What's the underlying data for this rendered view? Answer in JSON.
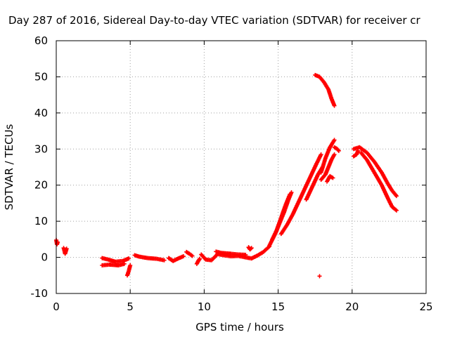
{
  "chart_data": {
    "type": "scatter",
    "title": "Day 287 of 2016, Sidereal Day-to-day VTEC variation (SDTVAR) for receiver cr",
    "xlabel": "GPS time / hours",
    "ylabel": "SDTVAR / TECUs",
    "xlim": [
      0,
      25
    ],
    "ylim": [
      -10,
      60
    ],
    "x_ticks": [
      "0",
      "5",
      "10",
      "15",
      "20",
      "25"
    ],
    "y_ticks": [
      "-10",
      "0",
      "10",
      "20",
      "30",
      "40",
      "50",
      "60"
    ],
    "x_tick_values": [
      0,
      5,
      10,
      15,
      20,
      25
    ],
    "y_tick_values": [
      -10,
      0,
      10,
      20,
      30,
      40,
      50,
      60
    ],
    "grid": true,
    "marker": "plus",
    "series": [
      {
        "name": "SDTVAR",
        "color": "#ff0000",
        "segments": [
          [
            [
              0.0,
              4.8
            ],
            [
              0.05,
              3.6
            ],
            [
              0.1,
              4.2
            ]
          ],
          [
            [
              0.5,
              2.6
            ],
            [
              0.6,
              1.0
            ],
            [
              0.7,
              2.4
            ]
          ],
          [
            [
              3.1,
              -0.2
            ],
            [
              3.5,
              -0.6
            ],
            [
              4.0,
              -1.2
            ],
            [
              4.5,
              -1.0
            ],
            [
              4.9,
              -0.3
            ]
          ],
          [
            [
              3.1,
              -2.2
            ],
            [
              3.6,
              -2.0
            ],
            [
              4.2,
              -2.2
            ],
            [
              4.6,
              -1.8
            ]
          ],
          [
            [
              4.8,
              -5.0
            ],
            [
              4.9,
              -3.8
            ],
            [
              5.0,
              -2.2
            ]
          ],
          [
            [
              5.3,
              0.6
            ],
            [
              5.6,
              0.2
            ],
            [
              6.2,
              -0.2
            ],
            [
              6.8,
              -0.4
            ],
            [
              7.3,
              -0.8
            ]
          ],
          [
            [
              7.6,
              -0.2
            ],
            [
              7.9,
              -1.0
            ],
            [
              8.3,
              -0.2
            ],
            [
              8.6,
              0.3
            ]
          ],
          [
            [
              8.8,
              1.5
            ],
            [
              9.0,
              1.0
            ],
            [
              9.2,
              0.4
            ]
          ],
          [
            [
              9.5,
              -1.8
            ],
            [
              9.6,
              -1.0
            ],
            [
              9.7,
              -0.4
            ]
          ],
          [
            [
              9.8,
              0.8
            ],
            [
              10.1,
              -0.6
            ],
            [
              10.5,
              -0.8
            ],
            [
              10.9,
              0.9
            ],
            [
              11.3,
              0.6
            ],
            [
              11.8,
              0.3
            ],
            [
              12.3,
              0.4
            ],
            [
              12.8,
              0.0
            ],
            [
              13.2,
              -0.3
            ],
            [
              13.6,
              0.5
            ],
            [
              14.0,
              1.5
            ],
            [
              14.4,
              3.0
            ]
          ],
          [
            [
              10.8,
              1.6
            ],
            [
              11.2,
              1.2
            ],
            [
              11.8,
              1.0
            ],
            [
              12.3,
              0.8
            ],
            [
              12.8,
              0.7
            ]
          ],
          [
            [
              13.0,
              2.8
            ],
            [
              13.1,
              2.2
            ],
            [
              13.2,
              2.6
            ]
          ],
          [
            [
              14.4,
              3.2
            ],
            [
              14.8,
              6.5
            ],
            [
              15.1,
              9.5
            ],
            [
              15.4,
              12.5
            ],
            [
              15.7,
              16.0
            ],
            [
              15.9,
              18.0
            ]
          ],
          [
            [
              14.6,
              5.0
            ],
            [
              14.9,
              7.5
            ],
            [
              15.2,
              11.0
            ],
            [
              15.5,
              14.5
            ],
            [
              15.8,
              17.5
            ]
          ],
          [
            [
              15.2,
              6.5
            ],
            [
              15.6,
              9.0
            ],
            [
              16.0,
              12.0
            ],
            [
              16.4,
              15.5
            ],
            [
              16.8,
              19.0
            ],
            [
              17.2,
              22.5
            ],
            [
              17.6,
              26.0
            ],
            [
              17.9,
              28.5
            ]
          ],
          [
            [
              16.9,
              16.0
            ],
            [
              17.3,
              19.5
            ],
            [
              17.7,
              23.0
            ],
            [
              18.0,
              25.0
            ]
          ],
          [
            [
              17.9,
              21.5
            ],
            [
              18.2,
              23.0
            ],
            [
              18.4,
              25.0
            ],
            [
              18.6,
              27.0
            ],
            [
              18.8,
              28.5
            ]
          ],
          [
            [
              17.9,
              23.5
            ],
            [
              18.2,
              27.5
            ],
            [
              18.5,
              30.5
            ],
            [
              18.8,
              32.5
            ]
          ],
          [
            [
              18.3,
              21.0
            ],
            [
              18.5,
              22.5
            ],
            [
              18.7,
              22.0
            ]
          ],
          [
            [
              17.5,
              50.5
            ],
            [
              17.8,
              50.0
            ],
            [
              18.1,
              48.5
            ],
            [
              18.4,
              46.5
            ],
            [
              18.6,
              44.0
            ],
            [
              18.8,
              42.0
            ]
          ],
          [
            [
              17.8,
              -5.2
            ]
          ],
          [
            [
              18.8,
              30.5
            ],
            [
              19.0,
              30.0
            ],
            [
              19.1,
              29.5
            ]
          ],
          [
            [
              20.1,
              30.0
            ],
            [
              20.5,
              30.5
            ],
            [
              21.0,
              29.0
            ],
            [
              21.5,
              26.5
            ],
            [
              22.0,
              23.5
            ],
            [
              22.4,
              20.5
            ],
            [
              22.7,
              18.5
            ],
            [
              23.0,
              17.0
            ]
          ],
          [
            [
              20.1,
              28.0
            ],
            [
              20.3,
              28.5
            ],
            [
              20.4,
              29.5
            ]
          ],
          [
            [
              20.6,
              29.0
            ],
            [
              21.0,
              27.0
            ],
            [
              21.5,
              23.5
            ],
            [
              22.0,
              20.0
            ],
            [
              22.4,
              16.5
            ],
            [
              22.7,
              14.0
            ],
            [
              23.0,
              13.0
            ]
          ]
        ]
      }
    ]
  }
}
